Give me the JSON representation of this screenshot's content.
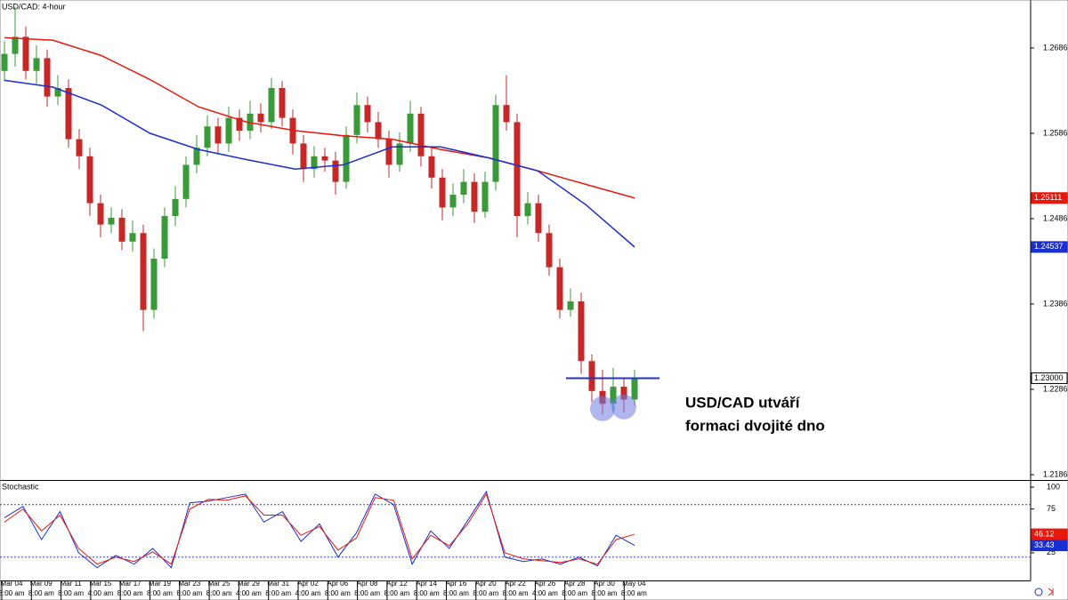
{
  "chart_data": [
    {
      "type": "candlestick",
      "title": "USD/CAD: 4-hour",
      "ylim": [
        1.21807,
        1.27431
      ],
      "yticks": [
        1.21869,
        1.22869,
        1.23869,
        1.24869,
        1.25869,
        1.26869
      ],
      "up_color": "#3a9a3a",
      "down_color": "#c62828",
      "open": [
        1.266,
        1.268,
        1.27,
        1.266,
        1.2675,
        1.263,
        1.264,
        1.258,
        1.256,
        1.2505,
        1.248,
        1.2488,
        1.246,
        1.247,
        1.238,
        1.244,
        1.249,
        1.251,
        1.255,
        1.257,
        1.2595,
        1.2575,
        1.2605,
        1.259,
        1.261,
        1.26,
        1.264,
        1.2605,
        1.2575,
        1.2545,
        1.256,
        1.2555,
        1.253,
        1.2585,
        1.262,
        1.26,
        1.258,
        1.255,
        1.2575,
        1.261,
        1.256,
        1.2535,
        1.25,
        1.2515,
        1.253,
        1.2495,
        1.253,
        1.262,
        1.26,
        1.249,
        1.2505,
        1.247,
        1.243,
        1.238,
        1.239,
        1.232,
        1.2285,
        1.227,
        1.229,
        1.2275
      ],
      "high": [
        1.2695,
        1.2735,
        1.2712,
        1.269,
        1.2685,
        1.2655,
        1.265,
        1.2592,
        1.257,
        1.2515,
        1.25,
        1.2498,
        1.2485,
        1.248,
        1.2452,
        1.25,
        1.2525,
        1.256,
        1.2585,
        1.2608,
        1.2605,
        1.2618,
        1.2615,
        1.2625,
        1.2622,
        1.2652,
        1.2648,
        1.2615,
        1.2585,
        1.2572,
        1.257,
        1.2565,
        1.2595,
        1.2635,
        1.263,
        1.2612,
        1.259,
        1.2588,
        1.2625,
        1.2618,
        1.257,
        1.2545,
        1.2528,
        1.2545,
        1.254,
        1.2542,
        1.2632,
        1.2655,
        1.261,
        1.2518,
        1.2515,
        1.248,
        1.244,
        1.2405,
        1.24,
        1.2328,
        1.231,
        1.2312,
        1.23,
        1.231
      ],
      "low": [
        1.2648,
        1.2665,
        1.265,
        1.2645,
        1.2618,
        1.262,
        1.257,
        1.2545,
        1.249,
        1.2465,
        1.247,
        1.245,
        1.2448,
        1.2355,
        1.237,
        1.243,
        1.2478,
        1.25,
        1.254,
        1.256,
        1.2562,
        1.2565,
        1.2578,
        1.258,
        1.2588,
        1.2592,
        1.2595,
        1.2562,
        1.253,
        1.2535,
        1.2542,
        1.2515,
        1.2522,
        1.2575,
        1.2588,
        1.257,
        1.2535,
        1.2542,
        1.2565,
        1.2548,
        1.2522,
        1.2485,
        1.249,
        1.2505,
        1.2482,
        1.2488,
        1.252,
        1.259,
        1.2465,
        1.248,
        1.246,
        1.242,
        1.237,
        1.2372,
        1.2305,
        1.2272,
        1.2258,
        1.2262,
        1.226,
        1.2268
      ],
      "close": [
        1.268,
        1.27,
        1.266,
        1.2675,
        1.263,
        1.264,
        1.258,
        1.256,
        1.2505,
        1.248,
        1.2488,
        1.246,
        1.247,
        1.238,
        1.244,
        1.249,
        1.251,
        1.255,
        1.257,
        1.2595,
        1.2575,
        1.2605,
        1.259,
        1.261,
        1.26,
        1.264,
        1.2605,
        1.2575,
        1.2545,
        1.256,
        1.2555,
        1.253,
        1.2585,
        1.262,
        1.26,
        1.258,
        1.255,
        1.2575,
        1.261,
        1.256,
        1.2535,
        1.25,
        1.2515,
        1.253,
        1.2495,
        1.253,
        1.262,
        1.26,
        1.249,
        1.2505,
        1.247,
        1.243,
        1.238,
        1.239,
        1.232,
        1.2285,
        1.227,
        1.229,
        1.2275,
        1.23
      ],
      "series": [
        {
          "color": "#e8190c",
          "values": [
            1.2699,
            1.2696,
            1.2678,
            1.265,
            1.2618,
            1.26,
            1.259,
            1.2584,
            1.258,
            1.2568,
            1.2558,
            1.2543,
            1.2527,
            1.25111
          ]
        },
        {
          "color": "#1a2fd0",
          "values": [
            1.2649,
            1.2641,
            1.262,
            1.2587,
            1.2568,
            1.2556,
            1.2545,
            1.255,
            1.2571,
            1.2571,
            1.2558,
            1.2543,
            1.2503,
            1.24537
          ]
        }
      ],
      "price_tags": [
        {
          "value": 1.25111,
          "color": "#e8190c"
        },
        {
          "value": 1.24537,
          "color": "#1a2fd0"
        },
        {
          "value": 1.23,
          "label": "1.23000",
          "color": "#000000"
        }
      ],
      "annotation": {
        "level": 1.23,
        "color": "#2233cc",
        "text": [
          "USD/CAD utváří",
          "formaci dvojité dno"
        ]
      },
      "x_tick_labels": [
        {
          "date": "Mar 04",
          "time": "8:00 am"
        },
        {
          "date": "Mar 09",
          "time": "8:00 am"
        },
        {
          "date": "Mar 11",
          "time": "8:00 am"
        },
        {
          "date": "Mar 15",
          "time": "4:00 am"
        },
        {
          "date": "Mar 17",
          "time": "8:00 am"
        },
        {
          "date": "Mar 19",
          "time": "8:00 am"
        },
        {
          "date": "Mar 23",
          "time": "8:00 am"
        },
        {
          "date": "Mar 25",
          "time": "8:00 am"
        },
        {
          "date": "Mar 29",
          "time": "4:00 am"
        },
        {
          "date": "Mar 31",
          "time": "8:00 am"
        },
        {
          "date": "Apr 02",
          "time": "4:00 am"
        },
        {
          "date": "Apr 06",
          "time": "8:00 am"
        },
        {
          "date": "Apr 08",
          "time": "8:00 am"
        },
        {
          "date": "Apr 12",
          "time": "8:00 am"
        },
        {
          "date": "Apr 14",
          "time": "8:00 am"
        },
        {
          "date": "Apr 16",
          "time": "8:00 am"
        },
        {
          "date": "Apr 20",
          "time": "8:00 am"
        },
        {
          "date": "Apr 22",
          "time": "8:00 am"
        },
        {
          "date": "Apr 26",
          "time": "4:00 am"
        },
        {
          "date": "Apr 28",
          "time": "8:00 am"
        },
        {
          "date": "Apr 30",
          "time": "8:00 am"
        },
        {
          "date": "May 04",
          "time": "8:00 am"
        }
      ]
    },
    {
      "type": "line",
      "title": "Stochastic",
      "ylim": [
        -6.6,
        107.1
      ],
      "yticks": [
        25,
        75,
        100
      ],
      "levels": [
        20,
        80
      ],
      "level_color": "#3344cc",
      "series": [
        {
          "color": "#1a2fd0",
          "values": [
            65,
            78,
            40,
            72,
            25,
            8,
            22,
            12,
            30,
            8,
            82,
            84,
            88,
            92,
            60,
            72,
            38,
            58,
            20,
            48,
            92,
            80,
            12,
            50,
            30,
            62,
            95,
            20,
            15,
            18,
            12,
            20,
            10,
            45,
            33.43
          ]
        },
        {
          "color": "#e8190c",
          "values": [
            60,
            75,
            50,
            68,
            30,
            12,
            20,
            15,
            26,
            12,
            75,
            86,
            85,
            90,
            68,
            68,
            45,
            55,
            28,
            42,
            88,
            85,
            18,
            45,
            33,
            58,
            92,
            25,
            18,
            16,
            14,
            18,
            12,
            40,
            46.12
          ]
        }
      ]
    }
  ]
}
